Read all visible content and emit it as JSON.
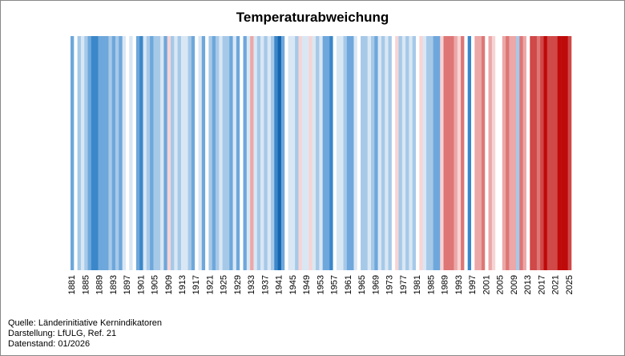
{
  "chart_data": {
    "type": "stripes",
    "title": "Temperaturabweichung",
    "categories": [
      1881,
      null,
      null,
      null,
      1885,
      null,
      null,
      null,
      1889,
      null,
      null,
      null,
      1893,
      null,
      null,
      null,
      1897,
      null,
      null,
      null,
      1901,
      null,
      null,
      null,
      1905,
      null,
      null,
      null,
      1909,
      null,
      null,
      null,
      1913,
      null,
      null,
      null,
      1917,
      null,
      null,
      null,
      1921,
      null,
      null,
      null,
      1925,
      null,
      null,
      null,
      1929,
      null,
      null,
      null,
      1933,
      null,
      null,
      null,
      1937,
      null,
      null,
      null,
      1941,
      null,
      null,
      null,
      1945,
      null,
      null,
      null,
      1949,
      null,
      null,
      null,
      1953,
      null,
      null,
      null,
      1957,
      null,
      null,
      null,
      1961,
      null,
      null,
      null,
      1965,
      null,
      null,
      null,
      1969,
      null,
      null,
      null,
      1973,
      null,
      null,
      null,
      1977,
      null,
      null,
      null,
      1981,
      null,
      null,
      null,
      1985,
      null,
      null,
      null,
      1989,
      null,
      null,
      null,
      1993,
      null,
      null,
      null,
      1997,
      null,
      null,
      null,
      2001,
      null,
      null,
      null,
      2005,
      null,
      null,
      null,
      2009,
      null,
      null,
      null,
      2013,
      null,
      null,
      null,
      2017,
      null,
      null,
      null,
      2021,
      null,
      null,
      null,
      2025
    ],
    "colors": [
      "#6ea7db",
      "#ffffff",
      "#a6c9e8",
      "#d9e7f4",
      "#a6c9e8",
      "#6ea7db",
      "#3b87c9",
      "#3b87c9",
      "#6ea7db",
      "#6ea7db",
      "#6ea7db",
      "#a6c9e8",
      "#6ea7db",
      "#a6c9e8",
      "#6ea7db",
      "#d9e7f4",
      "#ffffff",
      "#d9e7f4",
      "#ffffff",
      "#6ea7db",
      "#3b87c9",
      "#d9e7f4",
      "#a6c9e8",
      "#6ea7db",
      "#a6c9e8",
      "#a6c9e8",
      "#d9e7f4",
      "#6ea7db",
      "#f7d4d4",
      "#a6c9e8",
      "#d9e7f4",
      "#a6c9e8",
      "#d9e7f4",
      "#d9e7f4",
      "#a6c9e8",
      "#6ea7db",
      "#ffffff",
      "#d9e7f4",
      "#6ea7db",
      "#ffffff",
      "#a6c9e8",
      "#6ea7db",
      "#a6c9e8",
      "#d9e7f4",
      "#a6c9e8",
      "#a6c9e8",
      "#6ea7db",
      "#d9e7f4",
      "#6ea7db",
      "#ffffff",
      "#6ea7db",
      "#d9e7f4",
      "#eca7a7",
      "#d9e7f4",
      "#a6c9e8",
      "#d9e7f4",
      "#a6c9e8",
      "#d9e7f4",
      "#a6c9e8",
      "#3b87c9",
      "#1565b0",
      "#6ea7db",
      "#ffffff",
      "#d9e7f4",
      "#d9e7f4",
      "#a6c9e8",
      "#f7d4d4",
      "#d9e7f4",
      "#d9e7f4",
      "#f7d4d4",
      "#d9e7f4",
      "#a6c9e8",
      "#d9e7f4",
      "#6ea7db",
      "#6ea7db",
      "#3b87c9",
      "#ffffff",
      "#d9e7f4",
      "#d9e7f4",
      "#a6c9e8",
      "#6ea7db",
      "#6ea7db",
      "#d9e7f4",
      "#ffffff",
      "#a6c9e8",
      "#a6c9e8",
      "#d9e7f4",
      "#a6c9e8",
      "#6ea7db",
      "#d9e7f4",
      "#a6c9e8",
      "#d9e7f4",
      "#a6c9e8",
      "#ffffff",
      "#f7d4d4",
      "#a6c9e8",
      "#d9e7f4",
      "#a6c9e8",
      "#d9e7f4",
      "#a6c9e8",
      "#ffffff",
      "#f7d4d4",
      "#d9e7f4",
      "#a6c9e8",
      "#a6c9e8",
      "#6ea7db",
      "#6ea7db",
      "#f7d4d4",
      "#de7676",
      "#de7676",
      "#de7676",
      "#eca7a7",
      "#f7d4d4",
      "#de7676",
      "#ffffff",
      "#3b87c9",
      "#ffffff",
      "#eca7a7",
      "#eca7a7",
      "#de7676",
      "#ffffff",
      "#eca7a7",
      "#f7d4d4",
      "#ffffff",
      "#ffffff",
      "#eca7a7",
      "#de7676",
      "#eca7a7",
      "#eca7a7",
      "#a6c9e8",
      "#de7676",
      "#eca7a7",
      "#ffffff",
      "#d04848",
      "#d04848",
      "#de7676",
      "#d04848",
      "#bf0a0a",
      "#d04848",
      "#d04848",
      "#d04848",
      "#bf0a0a",
      "#bf0a0a",
      "#bf0a0a",
      "#d04848"
    ]
  },
  "footer": {
    "source": "Quelle:  Länderinitiative  Kernindikatoren",
    "author": "Darstellung:  LfULG, Ref. 21",
    "date": "Datenstand:  01/2026"
  }
}
